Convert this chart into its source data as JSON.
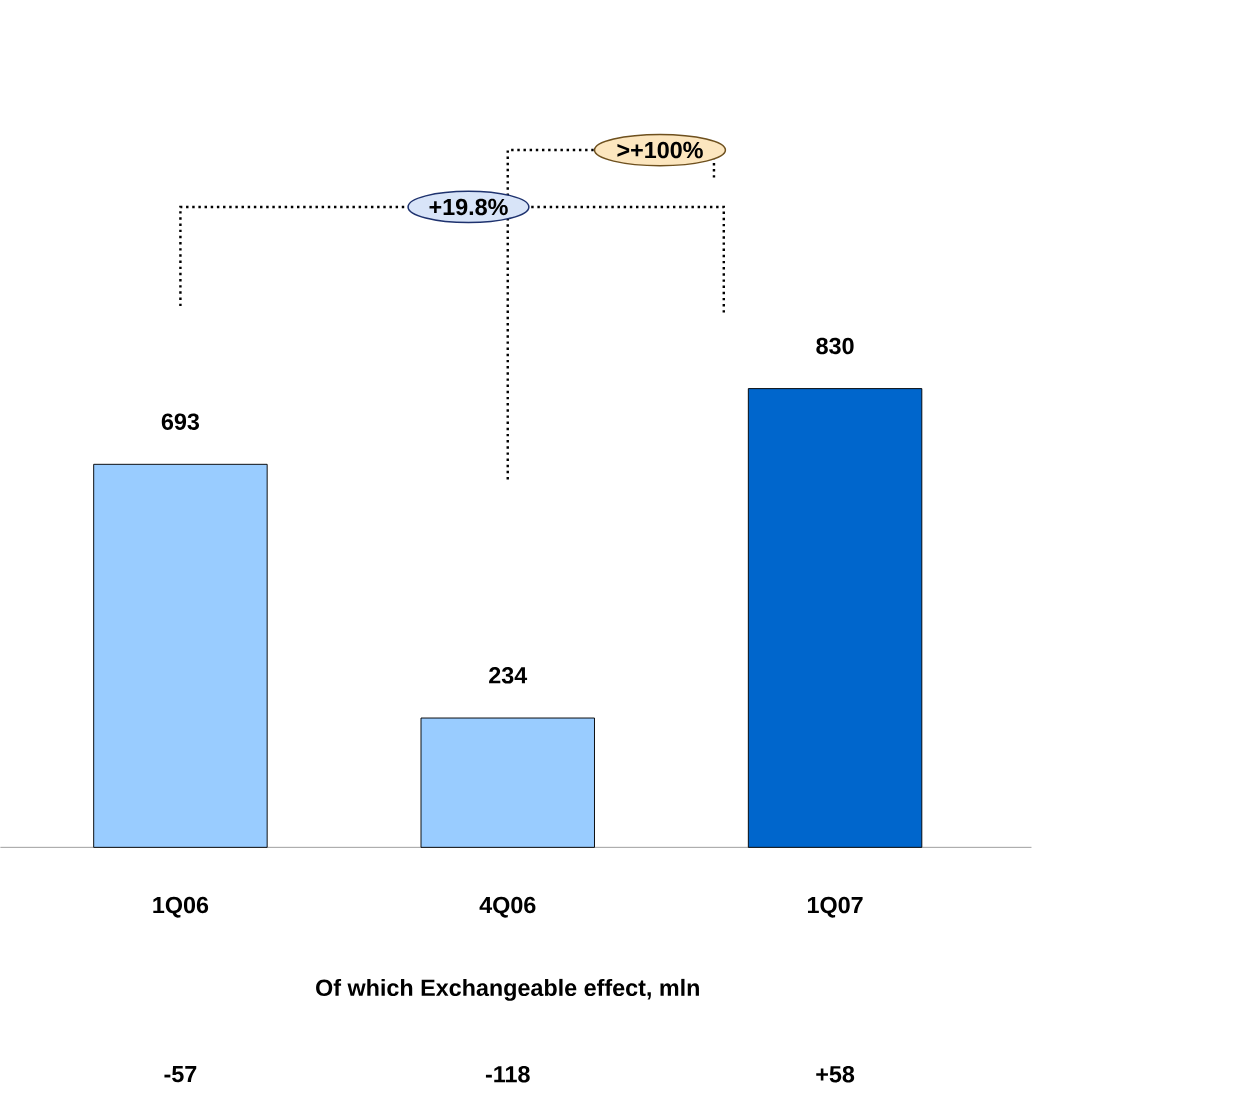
{
  "chart_data": {
    "type": "bar",
    "categories": [
      "1Q06",
      "4Q06",
      "1Q07"
    ],
    "values": [
      693,
      234,
      830
    ],
    "colors": [
      "#99ccff",
      "#99ccff",
      "#0066cc"
    ],
    "data_labels": true,
    "annotations": [
      "+19.8%",
      ">+100%",
      "Of which Exchangeable effect, mln",
      "-57",
      "-118",
      "+58"
    ]
  }
}
